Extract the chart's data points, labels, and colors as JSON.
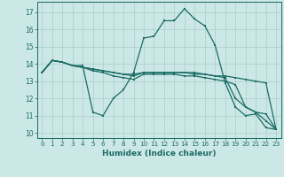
{
  "xlabel": "Humidex (Indice chaleur)",
  "xlim": [
    -0.5,
    23.5
  ],
  "ylim": [
    9.7,
    17.6
  ],
  "yticks": [
    10,
    11,
    12,
    13,
    14,
    15,
    16,
    17
  ],
  "xticks": [
    0,
    1,
    2,
    3,
    4,
    5,
    6,
    7,
    8,
    9,
    10,
    11,
    12,
    13,
    14,
    15,
    16,
    17,
    18,
    19,
    20,
    21,
    22,
    23
  ],
  "background_color": "#cce8e6",
  "grid_color": "#aaccca",
  "line_color": "#1a6b65",
  "lines": [
    [
      13.5,
      14.2,
      14.1,
      13.9,
      13.9,
      11.2,
      11.0,
      12.0,
      12.5,
      13.5,
      15.5,
      15.6,
      16.5,
      16.5,
      17.2,
      16.6,
      16.2,
      15.1,
      12.9,
      11.5,
      11.0,
      11.1,
      10.3,
      10.2
    ],
    [
      13.5,
      14.2,
      14.1,
      13.9,
      13.8,
      13.7,
      13.6,
      13.5,
      13.4,
      13.4,
      13.5,
      13.5,
      13.5,
      13.5,
      13.5,
      13.5,
      13.4,
      13.3,
      13.3,
      13.2,
      13.1,
      13.0,
      12.9,
      10.2
    ],
    [
      13.5,
      14.2,
      14.1,
      13.9,
      13.8,
      13.7,
      13.6,
      13.5,
      13.4,
      13.3,
      13.5,
      13.5,
      13.5,
      13.5,
      13.5,
      13.4,
      13.4,
      13.3,
      13.2,
      12.0,
      11.5,
      11.2,
      11.1,
      10.2
    ],
    [
      13.5,
      14.2,
      14.1,
      13.9,
      13.8,
      13.6,
      13.5,
      13.3,
      13.2,
      13.1,
      13.4,
      13.4,
      13.4,
      13.4,
      13.3,
      13.3,
      13.2,
      13.1,
      13.0,
      12.8,
      11.5,
      11.2,
      10.7,
      10.2
    ]
  ]
}
